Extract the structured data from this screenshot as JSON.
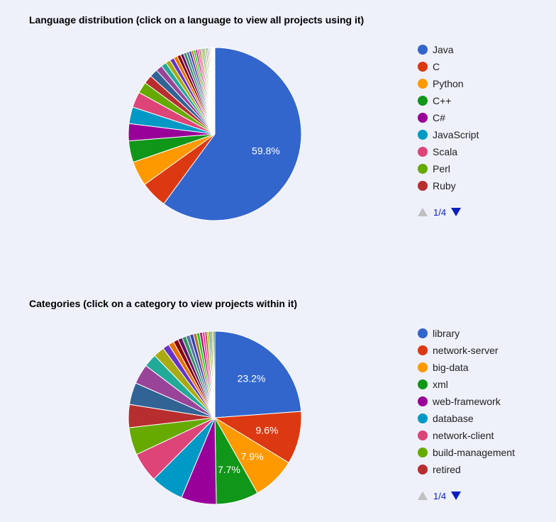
{
  "chart_data": [
    {
      "type": "pie",
      "title": "Language distribution (click on a language to view all projects using it)",
      "legend": "right",
      "legend_page": "1/4",
      "slices": [
        {
          "label": "Java",
          "value": 59.8,
          "color": "#3366cc",
          "data_label": "59.8%"
        },
        {
          "label": "C",
          "value": 5.0,
          "color": "#dc3912"
        },
        {
          "label": "Python",
          "value": 4.6,
          "color": "#ff9900"
        },
        {
          "label": "C++",
          "value": 4.0,
          "color": "#109618"
        },
        {
          "label": "C#",
          "value": 3.2,
          "color": "#990099"
        },
        {
          "label": "JavaScript",
          "value": 3.1,
          "color": "#0099c6"
        },
        {
          "label": "Scala",
          "value": 2.9,
          "color": "#dd4477"
        },
        {
          "label": "Perl",
          "value": 2.1,
          "color": "#66aa00"
        },
        {
          "label": "Ruby",
          "value": 1.6,
          "color": "#b82e2e"
        },
        {
          "value": 1.5,
          "color": "#316395"
        },
        {
          "value": 1.2,
          "color": "#994499"
        },
        {
          "value": 1.0,
          "color": "#22aa99"
        },
        {
          "value": 0.9,
          "color": "#aaaa11"
        },
        {
          "value": 0.8,
          "color": "#6633cc"
        },
        {
          "value": 0.7,
          "color": "#e67300"
        },
        {
          "value": 0.65,
          "color": "#8b0707"
        },
        {
          "value": 0.6,
          "color": "#651067"
        },
        {
          "value": 0.55,
          "color": "#329262"
        },
        {
          "value": 0.5,
          "color": "#5574a6"
        },
        {
          "value": 0.45,
          "color": "#3b3eac"
        },
        {
          "value": 0.4,
          "color": "#b77322"
        },
        {
          "value": 0.38,
          "color": "#16d620"
        },
        {
          "value": 0.35,
          "color": "#b91383"
        },
        {
          "value": 0.32,
          "color": "#f4359e"
        },
        {
          "value": 0.3,
          "color": "#9c5935"
        },
        {
          "value": 0.28,
          "color": "#a9c413"
        },
        {
          "value": 0.26,
          "color": "#2a778d"
        },
        {
          "value": 0.24,
          "color": "#668d1c"
        },
        {
          "value": 0.22,
          "color": "#bea413"
        },
        {
          "value": 0.2,
          "color": "#0c5922"
        },
        {
          "value": 0.19,
          "color": "#743411"
        },
        {
          "value": 0.18,
          "color": "#3366cc"
        },
        {
          "value": 0.17,
          "color": "#dc3912"
        },
        {
          "value": 0.16,
          "color": "#ff9900"
        },
        {
          "value": 0.15,
          "color": "#109618"
        },
        {
          "value": 0.14,
          "color": "#990099"
        },
        {
          "value": 0.13,
          "color": "#0099c6"
        },
        {
          "value": 0.12,
          "color": "#dd4477"
        },
        {
          "value": 0.11,
          "color": "#66aa00"
        },
        {
          "value": 0.1,
          "color": "#b82e2e"
        }
      ]
    },
    {
      "type": "pie",
      "title": "Categories (click on a category to view projects within it)",
      "legend": "right",
      "legend_page": "1/4",
      "slices": [
        {
          "label": "library",
          "value": 23.2,
          "color": "#3366cc",
          "data_label": "23.2%"
        },
        {
          "label": "network-server",
          "value": 9.6,
          "color": "#dc3912",
          "data_label": "9.6%"
        },
        {
          "label": "big-data",
          "value": 7.9,
          "color": "#ff9900",
          "data_label": "7.9%"
        },
        {
          "label": "xml",
          "value": 7.7,
          "color": "#109618",
          "data_label": "7.7%"
        },
        {
          "label": "web-framework",
          "value": 6.4,
          "color": "#990099"
        },
        {
          "label": "database",
          "value": 6.0,
          "color": "#0099c6"
        },
        {
          "label": "network-client",
          "value": 5.4,
          "color": "#dd4477"
        },
        {
          "label": "build-management",
          "value": 5.0,
          "color": "#66aa00"
        },
        {
          "label": "retired",
          "value": 4.2,
          "color": "#b82e2e"
        },
        {
          "value": 4.0,
          "color": "#316395"
        },
        {
          "value": 3.6,
          "color": "#994499"
        },
        {
          "value": 2.4,
          "color": "#22aa99"
        },
        {
          "value": 2.0,
          "color": "#aaaa11"
        },
        {
          "value": 1.2,
          "color": "#6633cc"
        },
        {
          "value": 1.0,
          "color": "#e67300"
        },
        {
          "value": 0.9,
          "color": "#8b0707"
        },
        {
          "value": 0.8,
          "color": "#651067"
        },
        {
          "value": 0.75,
          "color": "#329262"
        },
        {
          "value": 0.7,
          "color": "#5574a6"
        },
        {
          "value": 0.65,
          "color": "#3b3eac"
        },
        {
          "value": 0.6,
          "color": "#b77322"
        },
        {
          "value": 0.55,
          "color": "#16d620"
        },
        {
          "value": 0.5,
          "color": "#b91383"
        },
        {
          "value": 0.45,
          "color": "#f4359e"
        },
        {
          "value": 0.4,
          "color": "#9c5935"
        },
        {
          "value": 0.35,
          "color": "#a9c413"
        },
        {
          "value": 0.3,
          "color": "#2a778d"
        },
        {
          "value": 0.28,
          "color": "#668d1c"
        },
        {
          "value": 0.26,
          "color": "#bea413"
        },
        {
          "value": 0.24,
          "color": "#0c5922"
        }
      ]
    }
  ]
}
